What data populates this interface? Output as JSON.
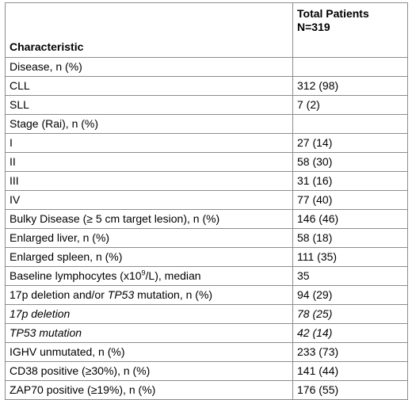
{
  "table": {
    "header": {
      "characteristic": "Characteristic",
      "total_line1": "Total Patients",
      "total_line2": "N=319"
    },
    "rows": [
      {
        "label": "Disease, n (%)",
        "value": ""
      },
      {
        "label": "CLL",
        "value": "312 (98)"
      },
      {
        "label": "SLL",
        "value": "7 (2)"
      },
      {
        "label": "Stage (Rai), n (%)",
        "value": ""
      },
      {
        "label": "I",
        "value": "27 (14)"
      },
      {
        "label": "II",
        "value": "58 (30)"
      },
      {
        "label": "III",
        "value": "31 (16)"
      },
      {
        "label": "IV",
        "value": "77 (40)"
      },
      {
        "label": "Bulky Disease (≥ 5 cm target lesion), n (%)",
        "value": "146 (46)"
      },
      {
        "label": "Enlarged liver, n (%)",
        "value": "58 (18)"
      },
      {
        "label": "Enlarged spleen, n (%)",
        "value": "111 (35)"
      },
      {
        "label_pre": "Baseline lymphocytes (x10",
        "label_sup": "9",
        "label_post": "/L), median",
        "value": "35"
      },
      {
        "label_pre": "17p deletion and/or ",
        "label_it": "TP53",
        "label_post": " mutation, n (%)",
        "value": "94 (29)"
      },
      {
        "label": "17p deletion",
        "value": "78 (25)"
      },
      {
        "label": "TP53 mutation",
        "value": "42 (14)"
      },
      {
        "label": "IGHV unmutated, n (%)",
        "value": "233 (73)"
      },
      {
        "label": "CD38 positive (≥30%), n (%)",
        "value": "141 (44)"
      },
      {
        "label": "ZAP70 positive (≥19%), n (%)",
        "value": "176 (55)"
      }
    ]
  }
}
